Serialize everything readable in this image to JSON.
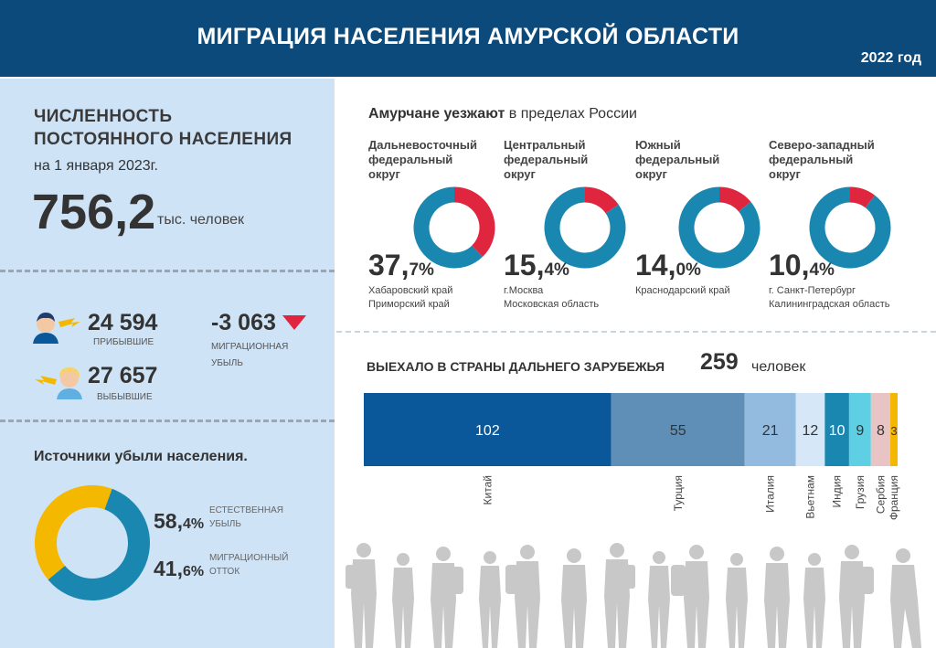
{
  "header": {
    "title": "МИГРАЦИЯ НАСЕЛЕНИЯ АМУРСКОЙ ОБЛАСТИ",
    "year": "2022 год"
  },
  "population": {
    "title_line1": "ЧИСЛЕННОСТЬ",
    "title_line2": "ПОСТОЯННОГО НАСЕЛЕНИЯ",
    "date": "на 1 января 2023г.",
    "value": "756,2",
    "unit": "тыс. человек"
  },
  "migration": {
    "arrived_value": "24 594",
    "arrived_label": "ПРИБЫВШИЕ",
    "departed_value": "27 657",
    "departed_label": "ВЫБЫВШИЕ",
    "net_value": "-3 063",
    "net_label_line1": "МИГРАЦИОННАЯ",
    "net_label_line2": "УБЫЛЬ"
  },
  "colors": {
    "header": "#0b4a7a",
    "teal": "#1a87b0",
    "red": "#e0263f",
    "yellow": "#f5b800",
    "panel": "#cfe3f6"
  },
  "chart_data": [
    {
      "type": "pie",
      "title": "Источники убыли населения.",
      "series": [
        {
          "name": "ЕСТЕСТВЕННАЯ УБЫЛЬ",
          "value": 58.4,
          "int_part": "58,",
          "dec_part": "4%",
          "label_line1": "ЕСТЕСТВЕННАЯ",
          "label_line2": "УБЫЛЬ",
          "color": "#1a87b0"
        },
        {
          "name": "МИГРАЦИОННЫЙ ОТТОК",
          "value": 41.6,
          "int_part": "41,",
          "dec_part": "6%",
          "label_line1": "МИГРАЦИОННЫЙ",
          "label_line2": "ОТТОК",
          "color": "#f5b800"
        }
      ]
    },
    {
      "type": "pie",
      "title_bold": "Амурчане уезжают",
      "title_rest": "в пределах России",
      "districts": [
        {
          "name_lines": [
            "Дальневосточный",
            "федеральный",
            "округ"
          ],
          "value": 37.7,
          "int_part": "37,",
          "dec_part": "7%",
          "regions": [
            "Хабаровский край",
            "Приморский край"
          ]
        },
        {
          "name_lines": [
            "Центральный",
            "федеральный",
            "округ"
          ],
          "value": 15.4,
          "int_part": "15,",
          "dec_part": "4%",
          "regions": [
            "г.Москва",
            "Московская область"
          ]
        },
        {
          "name_lines": [
            "Южный",
            "федеральный",
            "округ"
          ],
          "value": 14.0,
          "int_part": "14,",
          "dec_part": "0%",
          "regions": [
            "Краснодарский край"
          ]
        },
        {
          "name_lines": [
            "Северо-западный",
            "федеральный",
            "округ"
          ],
          "value": 10.4,
          "int_part": "10,",
          "dec_part": "4%",
          "regions": [
            "г. Санкт-Петербург",
            "Калининградская область"
          ]
        }
      ]
    },
    {
      "type": "bar",
      "orientation": "stacked-horizontal",
      "title": "Выехало в страны дальнего зарубежья",
      "total": "259",
      "total_unit": "человек",
      "categories": [
        "Китай",
        "Турция",
        "Италия",
        "Вьетнам",
        "Индия",
        "Грузия",
        "Сербия",
        "Франция"
      ],
      "values": [
        102,
        55,
        21,
        12,
        10,
        9,
        8,
        3
      ],
      "colors": [
        "#0a579a",
        "#5f8fb6",
        "#93bbe0",
        "#d6e8f8",
        "#1a87b0",
        "#5fd0e3",
        "#e8c4c4",
        "#f5b800"
      ]
    }
  ]
}
